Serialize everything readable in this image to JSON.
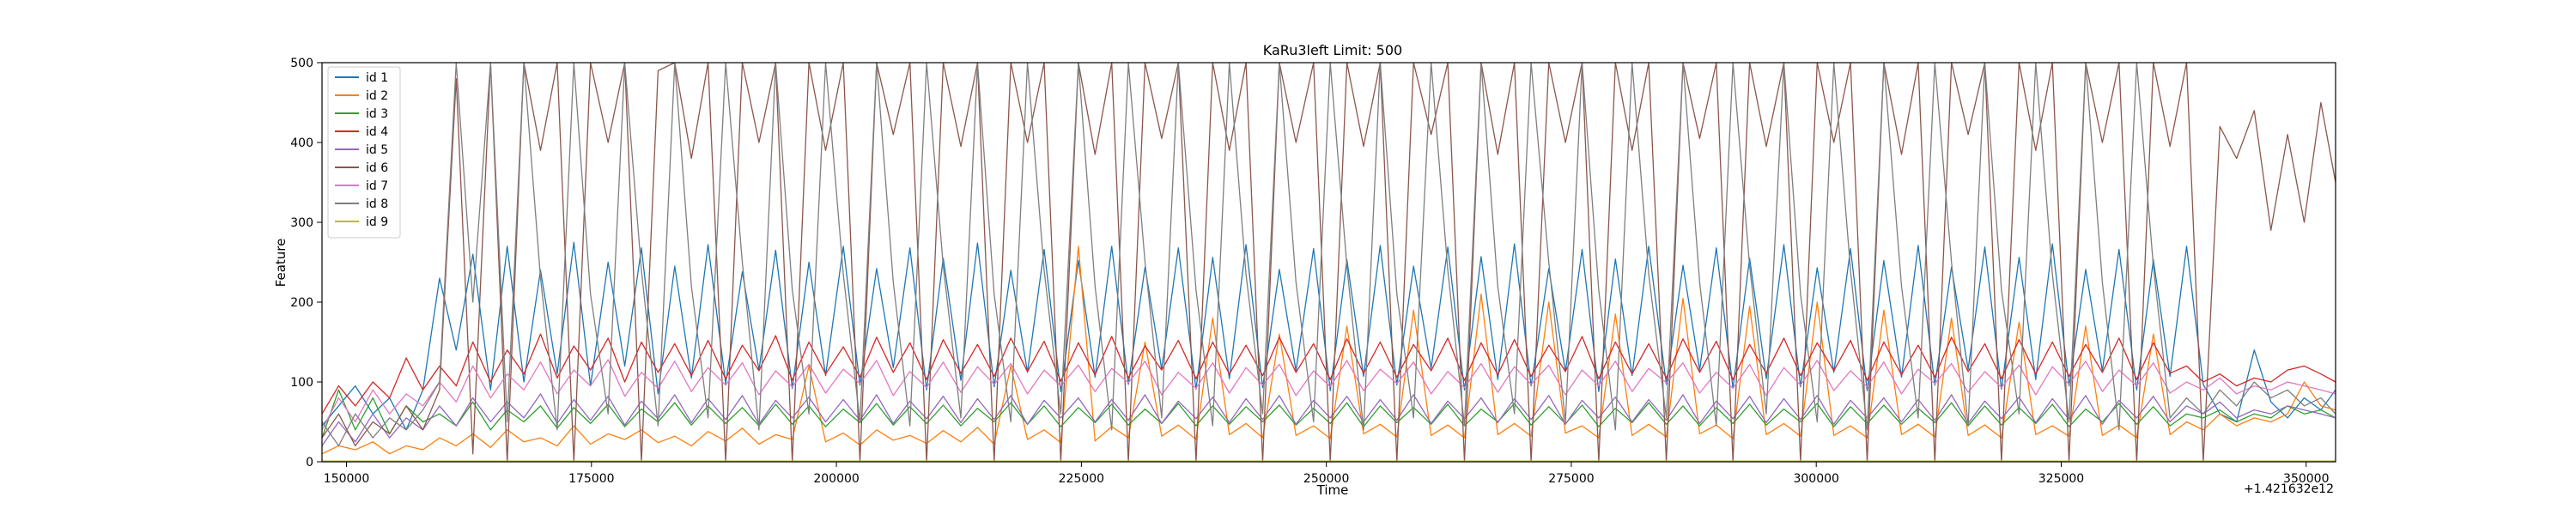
{
  "chart_data": {
    "type": "line",
    "title": "KaRu3left Limit: 500",
    "xlabel": "Time",
    "ylabel": "Feature",
    "x_offset_label": "+1.421632e12",
    "xlim": [
      147500,
      353000
    ],
    "ylim": [
      0,
      500
    ],
    "xticks": [
      150000,
      175000,
      200000,
      225000,
      250000,
      275000,
      300000,
      325000,
      350000
    ],
    "yticks": [
      0,
      100,
      200,
      300,
      400,
      500
    ],
    "grid": false,
    "legend_position": "top-left",
    "x": [
      147500,
      149200,
      150900,
      152700,
      154400,
      156100,
      157800,
      159500,
      161200,
      162900,
      164700,
      166400,
      168100,
      169800,
      171500,
      173200,
      174900,
      176700,
      178400,
      180100,
      181800,
      183500,
      185200,
      186900,
      188700,
      190400,
      192100,
      193800,
      195500,
      197200,
      198900,
      200700,
      202400,
      204100,
      205800,
      207500,
      209200,
      210900,
      212700,
      214400,
      216100,
      217800,
      219500,
      221200,
      222900,
      224700,
      226400,
      228100,
      229800,
      231500,
      233200,
      234900,
      236700,
      238400,
      240100,
      241800,
      243500,
      245200,
      246900,
      248700,
      250400,
      252100,
      253800,
      255500,
      257200,
      258900,
      260700,
      262400,
      264100,
      265800,
      267500,
      269200,
      270900,
      272700,
      274400,
      276100,
      277800,
      279500,
      281200,
      282900,
      284700,
      286400,
      288100,
      289800,
      291500,
      293200,
      294900,
      296700,
      298400,
      300100,
      301800,
      303500,
      305200,
      306900,
      308700,
      310400,
      312100,
      313800,
      315500,
      317200,
      318900,
      320700,
      322400,
      324100,
      325800,
      327500,
      329200,
      330900,
      332700,
      334400,
      336100,
      337800,
      339500,
      341200,
      342900,
      344700,
      346400,
      348100,
      349800,
      351500,
      353000
    ],
    "series": [
      {
        "name": "id 1",
        "color": "#1f77b4",
        "values": [
          45,
          70,
          95,
          60,
          80,
          40,
          90,
          230,
          140,
          260,
          90,
          270,
          100,
          240,
          110,
          275,
          95,
          250,
          120,
          268,
          85,
          245,
          105,
          272,
          98,
          238,
          115,
          265,
          92,
          250,
          108,
          270,
          96,
          242,
          118,
          268,
          90,
          255,
          102,
          274,
          94,
          240,
          112,
          266,
          88,
          252,
          106,
          270,
          97,
          244,
          116,
          268,
          91,
          256,
          104,
          272,
          93,
          241,
          114,
          267,
          89,
          253,
          107,
          271,
          96,
          245,
          117,
          269,
          90,
          257,
          103,
          273,
          95,
          242,
          113,
          266,
          88,
          254,
          108,
          270,
          97,
          246,
          115,
          268,
          92,
          255,
          104,
          272,
          94,
          243,
          112,
          267,
          89,
          252,
          106,
          271,
          96,
          244,
          116,
          269,
          91,
          256,
          103,
          273,
          95,
          241,
          114,
          266,
          90,
          253,
          107,
          270,
          97,
          60,
          50,
          140,
          75,
          55,
          80,
          65,
          90
        ]
      },
      {
        "name": "id 2",
        "color": "#ff7f0e",
        "values": [
          10,
          20,
          15,
          25,
          10,
          20,
          15,
          30,
          20,
          35,
          18,
          40,
          25,
          30,
          20,
          45,
          22,
          35,
          28,
          40,
          24,
          32,
          20,
          38,
          26,
          42,
          22,
          34,
          28,
          120,
          25,
          36,
          21,
          40,
          27,
          33,
          23,
          39,
          25,
          43,
          22,
          120,
          28,
          40,
          24,
          270,
          26,
          44,
          30,
          150,
          32,
          46,
          28,
          180,
          34,
          48,
          30,
          160,
          33,
          45,
          29,
          170,
          35,
          47,
          31,
          190,
          33,
          46,
          30,
          210,
          34,
          48,
          32,
          200,
          36,
          45,
          30,
          185,
          33,
          47,
          31,
          205,
          35,
          46,
          29,
          195,
          34,
          48,
          32,
          200,
          33,
          45,
          30,
          190,
          34,
          47,
          31,
          180,
          33,
          46,
          30,
          175,
          34,
          45,
          32,
          170,
          33,
          46,
          30,
          160,
          34,
          50,
          40,
          60,
          45,
          55,
          50,
          60,
          100,
          70,
          65
        ]
      },
      {
        "name": "id 3",
        "color": "#2ca02c",
        "values": [
          30,
          90,
          40,
          80,
          35,
          70,
          50,
          60,
          45,
          75,
          40,
          65,
          50,
          70,
          42,
          68,
          48,
          72,
          44,
          66,
          50,
          74,
          46,
          70,
          48,
          68,
          45,
          72,
          47,
          70,
          44,
          66,
          49,
          73,
          46,
          69,
          48,
          71,
          45,
          67,
          50,
          74,
          47,
          70,
          44,
          68,
          49,
          72,
          46,
          66,
          48,
          73,
          45,
          70,
          47,
          69,
          50,
          71,
          46,
          67,
          48,
          74,
          44,
          70,
          49,
          68,
          47,
          72,
          45,
          66,
          50,
          73,
          46,
          69,
          48,
          71,
          44,
          67,
          49,
          74,
          47,
          70,
          45,
          68,
          48,
          72,
          46,
          66,
          50,
          73,
          44,
          69,
          48,
          71,
          47,
          67,
          49,
          74,
          45,
          70,
          46,
          68,
          48,
          72,
          44,
          66,
          50,
          73,
          47,
          69,
          45,
          60,
          55,
          65,
          50,
          60,
          55,
          70,
          60,
          65,
          55
        ]
      },
      {
        "name": "id 4",
        "color": "#d62728",
        "values": [
          60,
          95,
          70,
          100,
          80,
          130,
          90,
          120,
          95,
          150,
          100,
          140,
          110,
          160,
          105,
          145,
          115,
          155,
          100,
          150,
          112,
          148,
          108,
          152,
          104,
          146,
          114,
          158,
          102,
          150,
          110,
          144,
          106,
          156,
          112,
          149,
          103,
          153,
          111,
          147,
          107,
          155,
          113,
          151,
          101,
          149,
          109,
          157,
          105,
          145,
          115,
          152,
          104,
          150,
          110,
          146,
          108,
          156,
          112,
          148,
          103,
          154,
          111,
          150,
          106,
          147,
          114,
          155,
          102,
          149,
          109,
          153,
          107,
          146,
          113,
          157,
          104,
          150,
          110,
          148,
          105,
          154,
          112,
          151,
          103,
          147,
          111,
          155,
          108,
          149,
          114,
          152,
          102,
          150,
          109,
          146,
          106,
          156,
          113,
          148,
          104,
          153,
          110,
          150,
          107,
          147,
          112,
          155,
          103,
          149,
          111,
          120,
          100,
          110,
          95,
          105,
          100,
          115,
          120,
          110,
          100
        ]
      },
      {
        "name": "id 5",
        "color": "#9467bd",
        "values": [
          20,
          50,
          25,
          60,
          30,
          55,
          40,
          70,
          45,
          80,
          50,
          75,
          55,
          85,
          48,
          78,
          52,
          82,
          46,
          76,
          54,
          84,
          49,
          79,
          53,
          83,
          47,
          77,
          55,
          81,
          50,
          78,
          52,
          84,
          48,
          76,
          54,
          82,
          49,
          79,
          53,
          83,
          47,
          77,
          55,
          80,
          50,
          78,
          52,
          84,
          48,
          76,
          54,
          81,
          49,
          79,
          53,
          83,
          47,
          77,
          55,
          82,
          50,
          78,
          52,
          84,
          48,
          76,
          54,
          80,
          49,
          79,
          53,
          83,
          47,
          77,
          55,
          81,
          50,
          78,
          52,
          84,
          48,
          76,
          54,
          82,
          49,
          79,
          53,
          83,
          47,
          77,
          55,
          80,
          50,
          78,
          52,
          84,
          48,
          76,
          54,
          81,
          49,
          79,
          53,
          83,
          47,
          77,
          55,
          82,
          50,
          70,
          60,
          75,
          55,
          65,
          60,
          70,
          65,
          60,
          55
        ]
      },
      {
        "name": "id 6",
        "color": "#8c564b",
        "values": [
          30,
          60,
          20,
          50,
          35,
          70,
          40,
          90,
          480,
          10,
          500,
          0,
          500,
          390,
          500,
          0,
          500,
          400,
          500,
          0,
          490,
          500,
          380,
          500,
          0,
          500,
          400,
          500,
          0,
          500,
          390,
          500,
          0,
          500,
          410,
          500,
          0,
          500,
          395,
          500,
          0,
          500,
          400,
          500,
          0,
          500,
          385,
          500,
          0,
          500,
          405,
          500,
          0,
          500,
          390,
          500,
          0,
          500,
          400,
          500,
          0,
          500,
          395,
          500,
          0,
          500,
          410,
          500,
          0,
          500,
          385,
          500,
          0,
          500,
          400,
          500,
          0,
          500,
          390,
          500,
          0,
          500,
          405,
          500,
          0,
          500,
          395,
          500,
          0,
          500,
          400,
          500,
          0,
          500,
          385,
          500,
          0,
          500,
          410,
          500,
          0,
          500,
          390,
          500,
          0,
          500,
          400,
          500,
          0,
          500,
          395,
          500,
          0,
          420,
          380,
          440,
          290,
          410,
          300,
          450,
          350
        ]
      },
      {
        "name": "id 7",
        "color": "#e377c2",
        "values": [
          40,
          80,
          50,
          90,
          60,
          85,
          70,
          100,
          75,
          120,
          80,
          110,
          90,
          125,
          85,
          115,
          95,
          128,
          82,
          112,
          92,
          126,
          88,
          118,
          96,
          124,
          84,
          114,
          94,
          122,
          86,
          116,
          98,
          127,
          83,
          113,
          93,
          125,
          87,
          119,
          97,
          123,
          85,
          115,
          95,
          121,
          88,
          117,
          99,
          126,
          84,
          112,
          92,
          124,
          86,
          118,
          96,
          122,
          83,
          114,
          94,
          127,
          89,
          116,
          98,
          125,
          85,
          113,
          93,
          123,
          87,
          119,
          97,
          121,
          84,
          115,
          95,
          126,
          88,
          117,
          99,
          124,
          86,
          112,
          92,
          122,
          83,
          118,
          96,
          127,
          89,
          114,
          94,
          125,
          85,
          116,
          98,
          123,
          87,
          113,
          93,
          121,
          84,
          119,
          97,
          126,
          88,
          115,
          95,
          124,
          86,
          100,
          90,
          105,
          85,
          95,
          90,
          100,
          95,
          90,
          85
        ]
      },
      {
        "name": "id 8",
        "color": "#7f7f7f",
        "values": [
          50,
          20,
          60,
          30,
          55,
          40,
          65,
          100,
          500,
          200,
          500,
          50,
          500,
          230,
          40,
          500,
          210,
          60,
          500,
          240,
          45,
          500,
          220,
          55,
          500,
          250,
          40,
          500,
          215,
          60,
          500,
          235,
          50,
          500,
          225,
          45,
          500,
          245,
          55,
          500,
          210,
          50,
          500,
          240,
          60,
          500,
          220,
          40,
          500,
          250,
          55,
          500,
          215,
          45,
          500,
          235,
          60,
          500,
          225,
          50,
          500,
          245,
          40,
          500,
          210,
          55,
          500,
          240,
          45,
          500,
          220,
          60,
          500,
          250,
          50,
          500,
          215,
          40,
          500,
          235,
          55,
          500,
          225,
          45,
          500,
          245,
          60,
          500,
          210,
          50,
          500,
          240,
          40,
          500,
          220,
          55,
          500,
          250,
          45,
          500,
          215,
          60,
          500,
          235,
          50,
          500,
          225,
          40,
          500,
          245,
          55,
          80,
          60,
          90,
          70,
          100,
          80,
          90,
          70,
          80,
          60
        ]
      },
      {
        "name": "id 9",
        "color": "#bcbd22",
        "values": [
          1,
          1,
          1,
          1,
          1,
          1,
          1,
          1,
          1,
          1,
          1,
          1,
          1,
          1,
          1,
          1,
          1,
          1,
          1,
          1,
          1,
          1,
          1,
          1,
          1,
          1,
          1,
          1,
          1,
          1,
          1,
          1,
          1,
          1,
          1,
          1,
          1,
          1,
          1,
          1,
          1,
          1,
          1,
          1,
          1,
          1,
          1,
          1,
          1,
          1,
          1,
          1,
          1,
          1,
          1,
          1,
          1,
          1,
          1,
          1,
          1,
          1,
          1,
          1,
          1,
          1,
          1,
          1,
          1,
          1,
          1,
          1,
          1,
          1,
          1,
          1,
          1,
          1,
          1,
          1,
          1,
          1,
          1,
          1,
          1,
          1,
          1,
          1,
          1,
          1,
          1,
          1,
          1,
          1,
          1,
          1,
          1,
          1,
          1,
          1,
          1,
          1,
          1,
          1,
          1,
          1,
          1,
          1,
          1,
          1,
          1,
          1,
          1,
          1,
          1,
          1,
          1,
          1,
          1,
          1,
          1
        ]
      }
    ]
  }
}
